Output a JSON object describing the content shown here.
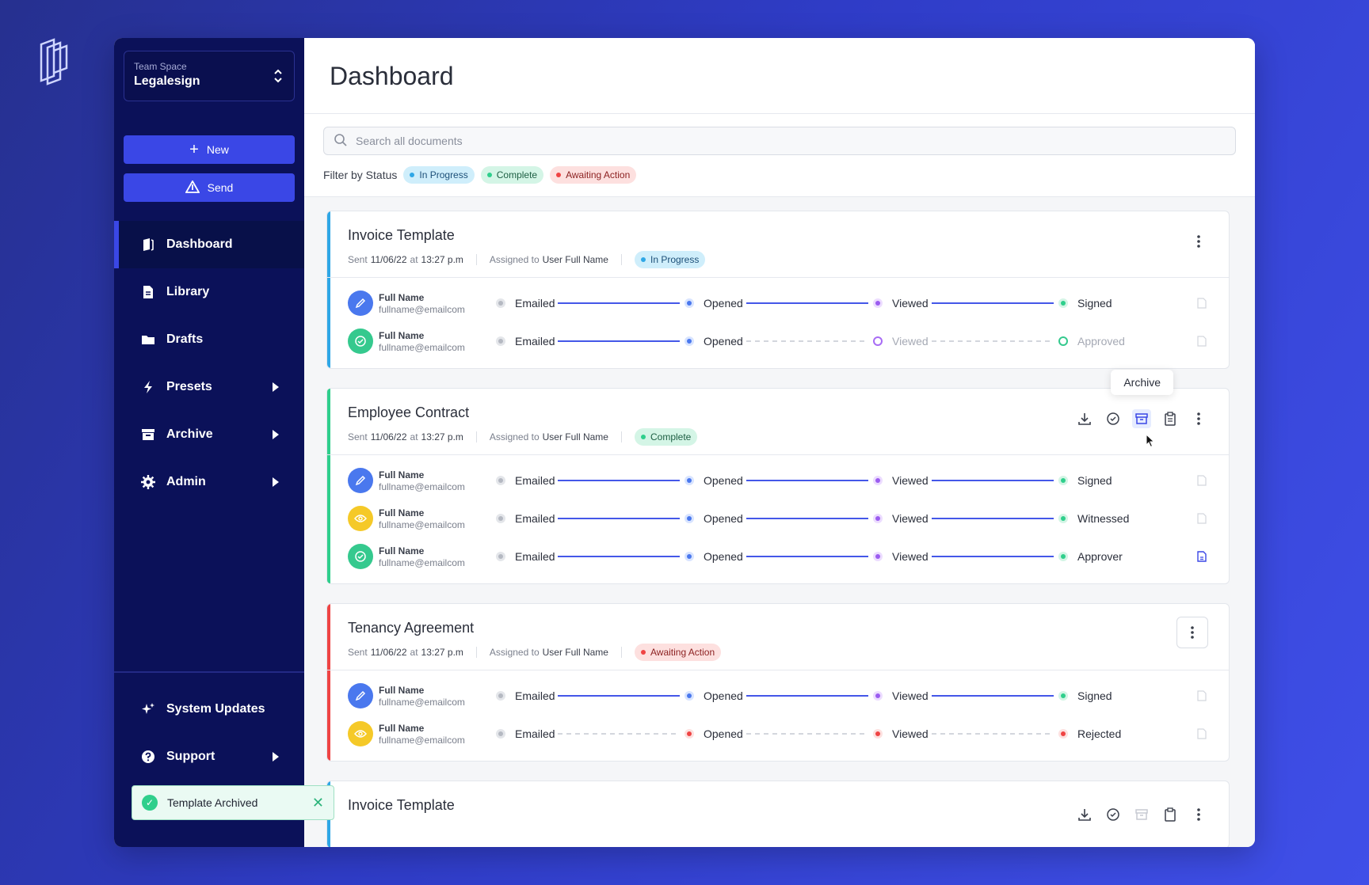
{
  "sidebar": {
    "team_label": "Team Space",
    "team_name": "Legalesign",
    "new_label": "New",
    "send_label": "Send",
    "nav": [
      {
        "label": "Dashboard",
        "icon": "dashboard-icon"
      },
      {
        "label": "Library",
        "icon": "document-icon"
      },
      {
        "label": "Drafts",
        "icon": "folder-icon"
      },
      {
        "label": "Presets",
        "icon": "lightning-icon"
      },
      {
        "label": "Archive",
        "icon": "archive-box-icon"
      },
      {
        "label": "Admin",
        "icon": "gear-icon"
      }
    ],
    "bottom": [
      {
        "label": "System Updates",
        "icon": "sparkle-icon"
      },
      {
        "label": "Support",
        "icon": "help-icon"
      }
    ]
  },
  "toast": {
    "message": "Template Archived"
  },
  "header": {
    "title": "Dashboard"
  },
  "search": {
    "placeholder": "Search all documents"
  },
  "filter": {
    "label": "Filter by Status",
    "pills": [
      "In Progress",
      "Complete",
      "Awaiting Action"
    ]
  },
  "tooltip": "Archive",
  "colors": {
    "in_progress": "#2fa7e6",
    "complete": "#2fcf8c",
    "awaiting": "#ef4444",
    "brand": "#3a47e6",
    "sidebar": "#0b1159"
  },
  "cards": [
    {
      "title": "Invoice Template",
      "sent_label": "Sent",
      "date": "11/06/22",
      "at": "at",
      "time": "13:27 p.m",
      "assigned_label": "Assigned to",
      "assignee": "User Full Name",
      "status": "In Progress",
      "signers": [
        {
          "name": "Full Name",
          "email": "fullname@emailcom",
          "steps": [
            "Emailed",
            "Opened",
            "Viewed",
            "Signed"
          ]
        },
        {
          "name": "Full Name",
          "email": "fullname@emailcom",
          "steps": [
            "Emailed",
            "Opened",
            "Viewed",
            "Approved"
          ]
        }
      ]
    },
    {
      "title": "Employee Contract",
      "sent_label": "Sent",
      "date": "11/06/22",
      "at": "at",
      "time": "13:27 p.m",
      "assigned_label": "Assigned to",
      "assignee": "User Full Name",
      "status": "Complete",
      "signers": [
        {
          "name": "Full Name",
          "email": "fullname@emailcom",
          "steps": [
            "Emailed",
            "Opened",
            "Viewed",
            "Signed"
          ]
        },
        {
          "name": "Full Name",
          "email": "fullname@emailcom",
          "steps": [
            "Emailed",
            "Opened",
            "Viewed",
            "Witnessed"
          ]
        },
        {
          "name": "Full Name",
          "email": "fullname@emailcom",
          "steps": [
            "Emailed",
            "Opened",
            "Viewed",
            "Approver"
          ]
        }
      ]
    },
    {
      "title": "Tenancy Agreement",
      "sent_label": "Sent",
      "date": "11/06/22",
      "at": "at",
      "time": "13:27 p.m",
      "assigned_label": "Assigned to",
      "assignee": "User Full Name",
      "status": "Awaiting Action",
      "signers": [
        {
          "name": "Full Name",
          "email": "fullname@emailcom",
          "steps": [
            "Emailed",
            "Opened",
            "Viewed",
            "Signed"
          ]
        },
        {
          "name": "Full Name",
          "email": "fullname@emailcom",
          "steps": [
            "Emailed",
            "Opened",
            "Viewed",
            "Rejected"
          ]
        }
      ]
    },
    {
      "title": "Invoice Template"
    }
  ]
}
